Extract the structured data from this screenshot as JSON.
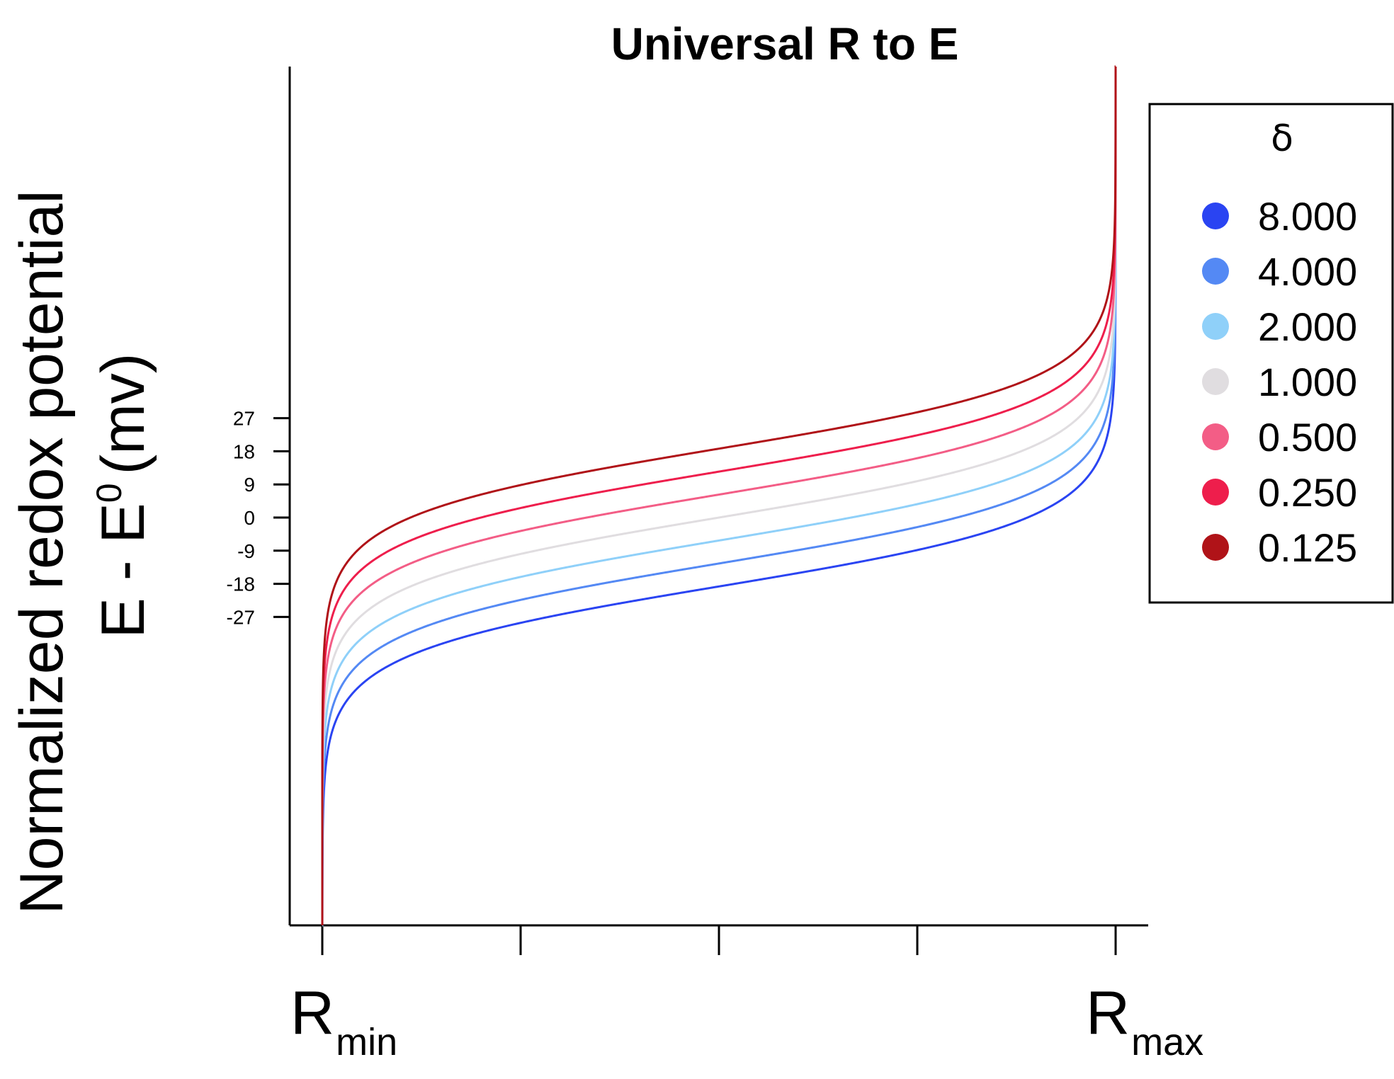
{
  "chart_data": {
    "type": "line",
    "title": "Universal R to E",
    "ylabel_line1": "Normalized redox potential",
    "ylabel_line2_main": "E - E",
    "ylabel_line2_sup": "0",
    "ylabel_line2_unit": "(mv)",
    "x_tick_labels": [
      {
        "main": "R",
        "sub": "min"
      },
      {
        "main": "R",
        "sub": "max"
      }
    ],
    "x_range": [
      0,
      1
    ],
    "x_ticks": [
      0,
      0.25,
      0.5,
      0.75,
      1
    ],
    "y_ticks": [
      27,
      18,
      9,
      0,
      -9,
      -18,
      -27
    ],
    "ylim": [
      -100,
      110
    ],
    "grid": false,
    "legend": {
      "title": "δ",
      "position": "right",
      "entries": [
        {
          "label": "8.000",
          "delta": 8,
          "color": "#2a44f2"
        },
        {
          "label": "4.000",
          "delta": 4,
          "color": "#5489f4"
        },
        {
          "label": "2.000",
          "delta": 2,
          "color": "#8fd0f9"
        },
        {
          "label": "1.000",
          "delta": 1,
          "color": "#e0dde0"
        },
        {
          "label": "0.500",
          "delta": 0.5,
          "color": "#f35d86"
        },
        {
          "label": "0.250",
          "delta": 0.25,
          "color": "#ee1e4c"
        },
        {
          "label": "0.125",
          "delta": 0.125,
          "color": "#b01318"
        }
      ]
    }
  }
}
